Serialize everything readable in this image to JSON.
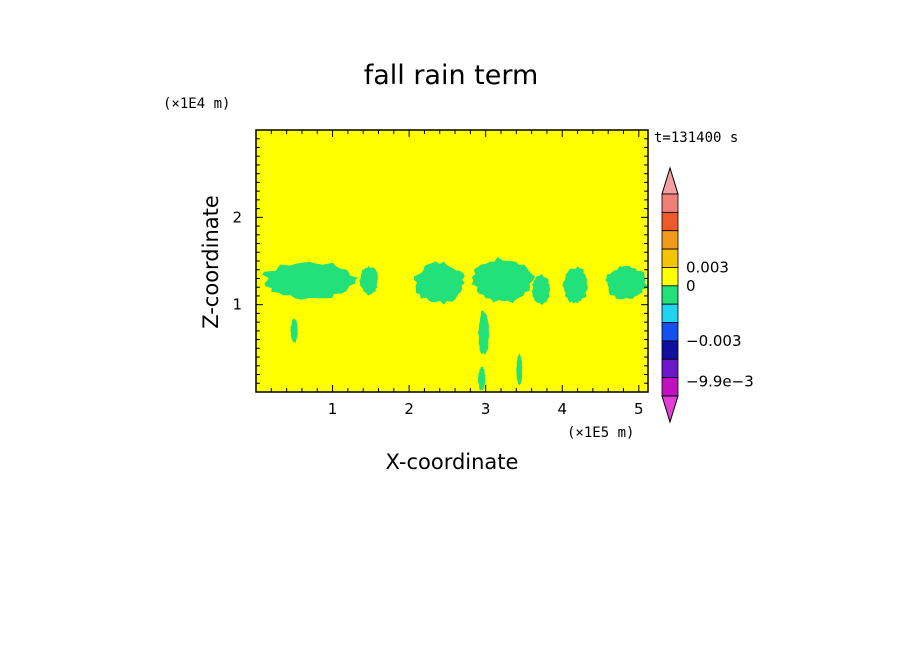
{
  "chart_data": {
    "type": "heatmap",
    "title": "fall rain term",
    "xlabel": "X-coordinate",
    "ylabel": "Z-coordinate",
    "x_unit": "(×1E5 m)",
    "y_unit": "(×1E4 m)",
    "time_label": "t=131400 s",
    "xlim": [
      0,
      5.12
    ],
    "ylim": [
      0,
      3.0
    ],
    "x_ticks": [
      "1",
      "2",
      "3",
      "4",
      "5"
    ],
    "y_ticks": [
      "1",
      "2"
    ],
    "background_level": "0 (neutral)",
    "background_color": "#ffff00",
    "anomaly_color": "#22e07a",
    "colorbar": {
      "levels": [
        {
          "color": "#f4a0a0",
          "role": "overflow-high"
        },
        {
          "color": "#f07f78"
        },
        {
          "color": "#f05a2a"
        },
        {
          "color": "#f09a1a"
        },
        {
          "color": "#f4c400"
        },
        {
          "color": "#ffff00"
        },
        {
          "color": "#22e07a"
        },
        {
          "color": "#22d3f0"
        },
        {
          "color": "#1450f0"
        },
        {
          "color": "#1010a0"
        },
        {
          "color": "#6a18c8"
        },
        {
          "color": "#c010c0"
        },
        {
          "color": "#e040d8",
          "role": "overflow-low"
        }
      ],
      "labels": [
        "0.003",
        "0",
        "−0.003",
        "−9.9e−3"
      ]
    },
    "green_regions": [
      {
        "x0": 0.05,
        "x1": 1.35,
        "z0": 1.05,
        "z1": 1.5
      },
      {
        "x0": 1.35,
        "x1": 1.6,
        "z0": 1.1,
        "z1": 1.45
      },
      {
        "x0": 2.05,
        "x1": 2.75,
        "z0": 1.0,
        "z1": 1.5
      },
      {
        "x0": 2.8,
        "x1": 3.65,
        "z0": 1.0,
        "z1": 1.55
      },
      {
        "x0": 3.6,
        "x1": 3.85,
        "z0": 1.0,
        "z1": 1.35
      },
      {
        "x0": 4.0,
        "x1": 4.35,
        "z0": 1.0,
        "z1": 1.45
      },
      {
        "x0": 4.55,
        "x1": 5.12,
        "z0": 1.05,
        "z1": 1.45
      },
      {
        "x0": 2.9,
        "x1": 3.05,
        "z0": 0.4,
        "z1": 0.95
      },
      {
        "x0": 2.9,
        "x1": 3.0,
        "z0": 0.0,
        "z1": 0.3
      },
      {
        "x0": 3.4,
        "x1": 3.48,
        "z0": 0.05,
        "z1": 0.45
      },
      {
        "x0": 0.45,
        "x1": 0.55,
        "z0": 0.55,
        "z1": 0.85
      }
    ]
  }
}
